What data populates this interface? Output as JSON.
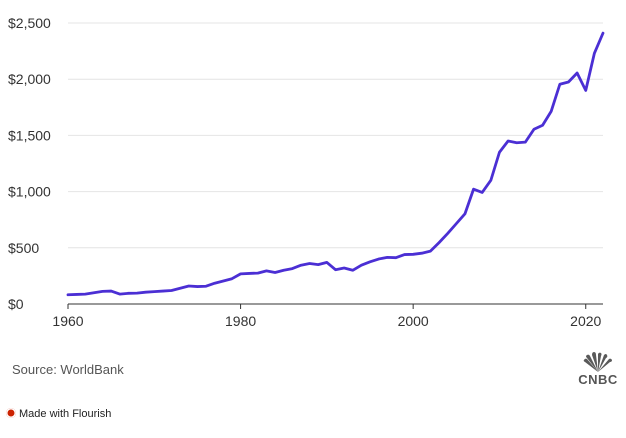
{
  "chart_data": {
    "type": "line",
    "title": "",
    "xlabel": "",
    "ylabel": "",
    "xlim": [
      1960,
      2022
    ],
    "ylim": [
      0,
      2500
    ],
    "x_ticks": [
      1960,
      1980,
      2000,
      2020
    ],
    "y_ticks": [
      0,
      500,
      1000,
      1500,
      2000,
      2500
    ],
    "y_tick_labels": [
      "$0",
      "$500",
      "$1,000",
      "$1,500",
      "$2,000",
      "$2,500"
    ],
    "x_tick_labels": [
      "1960",
      "1980",
      "2000",
      "2020"
    ],
    "grid": "horizontal",
    "line_color": "#4b2fd4",
    "series": [
      {
        "x": [
          1960,
          1961,
          1962,
          1963,
          1964,
          1965,
          1966,
          1967,
          1968,
          1969,
          1970,
          1971,
          1972,
          1973,
          1974,
          1975,
          1976,
          1977,
          1978,
          1979,
          1980,
          1981,
          1982,
          1983,
          1984,
          1985,
          1986,
          1987,
          1988,
          1989,
          1990,
          1991,
          1992,
          1993,
          1994,
          1995,
          1996,
          1997,
          1998,
          1999,
          2000,
          2001,
          2002,
          2003,
          2004,
          2005,
          2006,
          2007,
          2008,
          2009,
          2010,
          2011,
          2012,
          2013,
          2014,
          2015,
          2016,
          2017,
          2018,
          2019,
          2020,
          2021,
          2022
        ],
        "y": [
          82,
          85,
          88,
          100,
          112,
          115,
          88,
          95,
          97,
          105,
          110,
          115,
          120,
          140,
          160,
          155,
          158,
          185,
          205,
          225,
          268,
          272,
          275,
          295,
          280,
          300,
          315,
          345,
          360,
          350,
          370,
          305,
          320,
          300,
          345,
          375,
          400,
          415,
          412,
          440,
          442,
          452,
          470,
          546,
          628,
          715,
          802,
          1022,
          993,
          1100,
          1350,
          1450,
          1435,
          1440,
          1555,
          1590,
          1715,
          1955,
          1975,
          2055,
          1900,
          2230,
          2410
        ]
      }
    ]
  },
  "source_text": "Source: WorldBank",
  "logo_text": "CNBC",
  "logo_icon": "peacock-icon",
  "flourish_text": "Made with Flourish",
  "flourish_icon": "flourish-burst-icon"
}
